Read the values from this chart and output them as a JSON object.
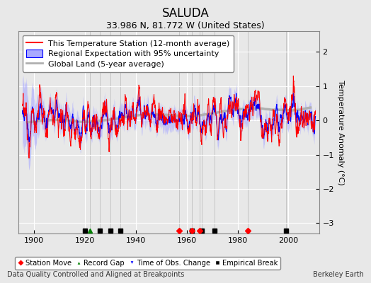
{
  "title": "SALUDA",
  "subtitle": "33.986 N, 81.772 W (United States)",
  "ylabel": "Temperature Anomaly (°C)",
  "xlabel_note": "Data Quality Controlled and Aligned at Breakpoints",
  "credit": "Berkeley Earth",
  "year_start": 1895,
  "year_end": 2011,
  "ylim": [
    -3.3,
    2.6
  ],
  "yticks": [
    -3,
    -2,
    -1,
    0,
    1,
    2
  ],
  "xticks": [
    1900,
    1920,
    1940,
    1960,
    1980,
    2000
  ],
  "bg_color": "#e8e8e8",
  "plot_bg_color": "#e8e8e8",
  "grid_color": "#ffffff",
  "station_color": "#ff0000",
  "regional_color": "#0000ff",
  "regional_fill_color": "#aaaaff",
  "global_color": "#b0b0b0",
  "marker_events": {
    "empirical_breaks": [
      1920,
      1926,
      1930,
      1934,
      1962,
      1966,
      1971,
      1999
    ],
    "station_moves": [
      1957,
      1962,
      1965,
      1984
    ],
    "record_gaps": [
      1922
    ],
    "time_obs_changes": []
  },
  "title_fontsize": 12,
  "subtitle_fontsize": 9,
  "legend_fontsize": 8,
  "tick_fontsize": 8,
  "ylabel_fontsize": 8
}
